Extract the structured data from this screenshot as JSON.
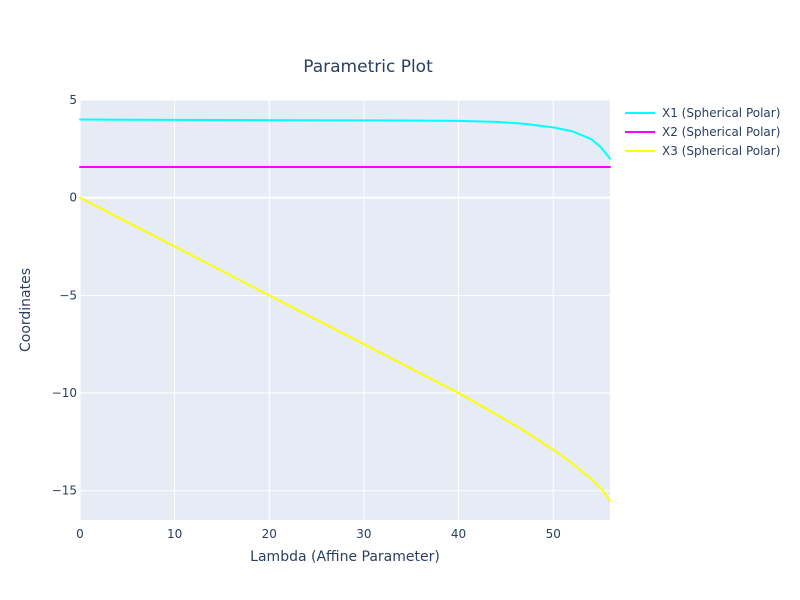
{
  "chart_data": {
    "type": "line",
    "title": "Parametric Plot",
    "xlabel": "Lambda (Affine Parameter)",
    "ylabel": "Coordinates",
    "xlim": [
      0,
      56
    ],
    "ylim": [
      -16.5,
      5
    ],
    "x_ticks": [
      0,
      10,
      20,
      30,
      40,
      50
    ],
    "x_tick_labels": [
      "0",
      "10",
      "20",
      "30",
      "40",
      "50"
    ],
    "y_ticks": [
      5,
      0,
      -5,
      -10,
      -15
    ],
    "y_tick_labels": [
      "5",
      "0",
      "−5",
      "−10",
      "−15"
    ],
    "grid": true,
    "legend_position": "top-right",
    "plot_background": "#e5ecf6",
    "grid_color": "#ffffff",
    "series": [
      {
        "name": "X1 (Spherical Polar)",
        "color": "#00ffff",
        "x": [
          0,
          10,
          20,
          30,
          35,
          40,
          44,
          47,
          50,
          52,
          54,
          55,
          55.5,
          56
        ],
        "y": [
          4.0,
          3.98,
          3.97,
          3.96,
          3.95,
          3.93,
          3.88,
          3.78,
          3.6,
          3.4,
          3.0,
          2.6,
          2.3,
          2.0
        ]
      },
      {
        "name": "X2 (Spherical Polar)",
        "color": "#ff00ff",
        "x": [
          0,
          56
        ],
        "y": [
          1.5708,
          1.5708
        ]
      },
      {
        "name": "X3 (Spherical Polar)",
        "color": "#ffff00",
        "x": [
          0,
          10,
          20,
          30,
          35,
          40,
          44,
          47,
          50,
          52,
          54,
          55,
          56
        ],
        "y": [
          0,
          -2.5,
          -5.0,
          -7.5,
          -8.75,
          -10.0,
          -11.1,
          -11.95,
          -12.9,
          -13.6,
          -14.4,
          -14.85,
          -15.5
        ]
      }
    ]
  }
}
